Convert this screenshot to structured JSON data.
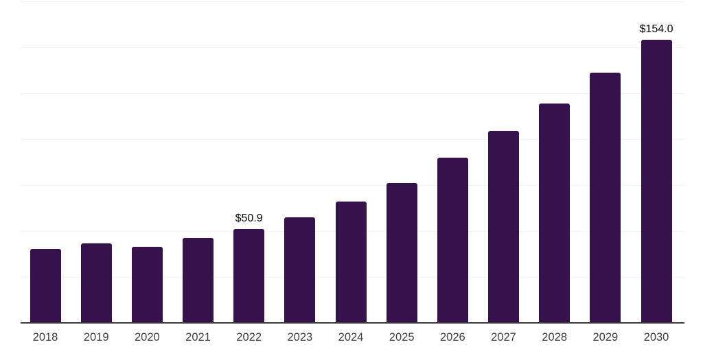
{
  "chart_data": {
    "type": "bar",
    "title": "",
    "xlabel": "",
    "ylabel": "",
    "categories": [
      "2018",
      "2019",
      "2020",
      "2021",
      "2022",
      "2023",
      "2024",
      "2025",
      "2026",
      "2027",
      "2028",
      "2029",
      "2030"
    ],
    "values": [
      40.0,
      43.1,
      41.3,
      46.1,
      50.9,
      57.3,
      65.8,
      76.2,
      89.9,
      104.5,
      119.4,
      136.1,
      154.0
    ],
    "bar_labels": [
      "",
      "",
      "",
      "",
      "$50.9",
      "",
      "",
      "",
      "",
      "",
      "",
      "",
      "$154.0"
    ],
    "ylim": [
      0,
      175
    ],
    "grid_step": 25,
    "grid": "horizontal-only",
    "legend_position": "none",
    "colors": {
      "bar": "#35124B",
      "axis_line": "#3D3D3D",
      "gridline": "#F0F0F0",
      "tick_label": "#404040",
      "value_label": "#000000",
      "background": "#FFFFFF"
    }
  }
}
